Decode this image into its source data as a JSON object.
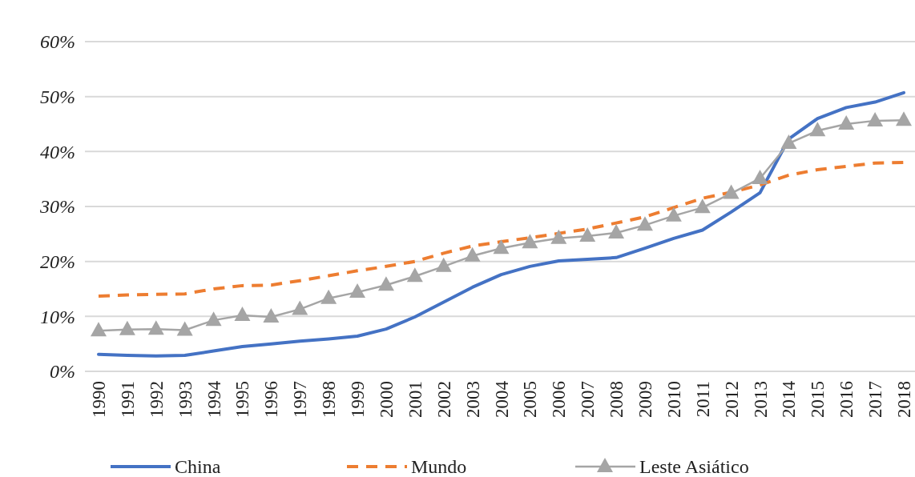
{
  "chart_data": {
    "type": "line",
    "categories": [
      "1990",
      "1991",
      "1992",
      "1993",
      "1994",
      "1995",
      "1996",
      "1997",
      "1998",
      "1999",
      "2000",
      "2001",
      "2002",
      "2003",
      "2004",
      "2005",
      "2006",
      "2007",
      "2008",
      "2009",
      "2010",
      "2011",
      "2012",
      "2013",
      "2014",
      "2015",
      "2016",
      "2017",
      "2018"
    ],
    "series": [
      {
        "name": "China",
        "color": "#4472c4",
        "line_style": "solid",
        "marker": "none",
        "values": [
          3.1,
          2.9,
          2.8,
          2.9,
          3.7,
          4.5,
          5.0,
          5.5,
          5.9,
          6.4,
          7.7,
          9.9,
          12.6,
          15.3,
          17.6,
          19.1,
          20.1,
          20.4,
          20.7,
          22.4,
          24.2,
          25.7,
          29.0,
          32.5,
          42.3,
          46.0,
          48.0,
          49.0,
          50.7
        ]
      },
      {
        "name": "Mundo",
        "color": "#ed7d31",
        "line_style": "dashed",
        "marker": "none",
        "values": [
          13.7,
          13.9,
          14.0,
          14.1,
          15.0,
          15.6,
          15.7,
          16.5,
          17.4,
          18.3,
          19.1,
          20.0,
          21.5,
          22.8,
          23.6,
          24.3,
          25.1,
          25.9,
          27.0,
          28.1,
          29.8,
          31.5,
          32.6,
          33.9,
          35.7,
          36.7,
          37.3,
          37.9,
          38.0
        ]
      },
      {
        "name": "Leste Asiático",
        "color": "#a5a5a5",
        "line_style": "solid",
        "marker": "triangle",
        "values": [
          7.4,
          7.6,
          7.7,
          7.5,
          9.3,
          10.2,
          9.9,
          11.3,
          13.3,
          14.4,
          15.7,
          17.3,
          19.1,
          21.0,
          22.4,
          23.4,
          24.2,
          24.6,
          25.2,
          26.6,
          28.3,
          29.8,
          32.4,
          35.1,
          41.5,
          43.8,
          45.0,
          45.6,
          45.7
        ]
      }
    ],
    "ylim": [
      0,
      60
    ],
    "yticks": [
      {
        "value": 0,
        "label": "0%"
      },
      {
        "value": 10,
        "label": "10%"
      },
      {
        "value": 20,
        "label": "20%"
      },
      {
        "value": 30,
        "label": "30%"
      },
      {
        "value": 40,
        "label": "40%"
      },
      {
        "value": 50,
        "label": "50%"
      },
      {
        "value": 60,
        "label": "60%"
      }
    ],
    "grid": "y",
    "legend": "bottom"
  }
}
